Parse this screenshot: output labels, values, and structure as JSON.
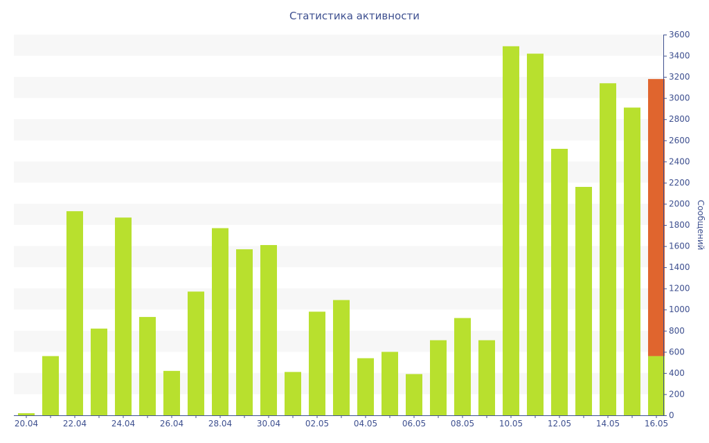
{
  "chart_data": {
    "type": "bar",
    "title": "Статистика активности",
    "xlabel": "",
    "ylabel": "Сообщений",
    "ylim": [
      0,
      3600
    ],
    "yticks": [
      0,
      200,
      400,
      600,
      800,
      1000,
      1200,
      1400,
      1600,
      1800,
      2000,
      2200,
      2400,
      2600,
      2800,
      3000,
      3200,
      3400,
      3600
    ],
    "grid": "alternating horizontal bands",
    "y_axis_position": "right",
    "categories": [
      "20.04",
      "21.04",
      "22.04",
      "23.04",
      "24.04",
      "25.04",
      "26.04",
      "27.04",
      "28.04",
      "29.04",
      "30.04",
      "01.05",
      "02.05",
      "03.05",
      "04.05",
      "05.05",
      "06.05",
      "07.05",
      "08.05",
      "09.05",
      "10.05",
      "11.05",
      "12.05",
      "13.05",
      "14.05",
      "15.05",
      "16.05"
    ],
    "x_tick_labels": [
      "20.04",
      "22.04",
      "24.04",
      "26.04",
      "28.04",
      "30.04",
      "02.05",
      "04.05",
      "06.05",
      "08.05",
      "10.05",
      "12.05",
      "14.05",
      "16.05"
    ],
    "series": [
      {
        "color": "#b8e02e",
        "values": [
          20,
          560,
          1930,
          820,
          1870,
          930,
          420,
          1170,
          1770,
          1570,
          1610,
          410,
          980,
          1090,
          540,
          600,
          390,
          710,
          920,
          710,
          3490,
          3420,
          2520,
          2160,
          3140,
          2910,
          560
        ]
      },
      {
        "color": "#e0652e",
        "values": [
          0,
          0,
          0,
          0,
          0,
          0,
          0,
          0,
          0,
          0,
          0,
          0,
          0,
          0,
          0,
          0,
          0,
          0,
          0,
          0,
          0,
          0,
          0,
          0,
          0,
          0,
          2620
        ]
      }
    ],
    "colors": {
      "axis": "#3d4f8f",
      "band": "#f7f7f7"
    }
  }
}
